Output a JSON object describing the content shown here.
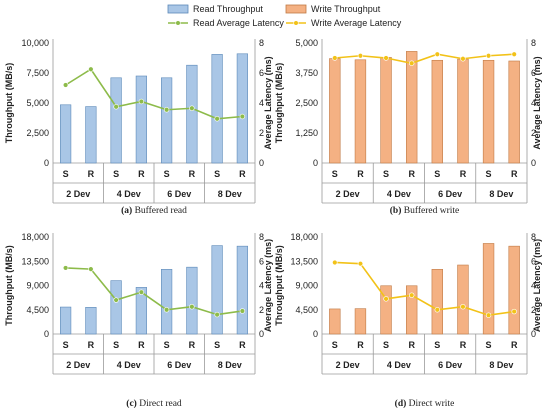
{
  "legend": {
    "read_throughput": "Read Throughput",
    "write_throughput": "Write Throughput",
    "read_latency": "Read Average Latency",
    "write_latency": "Write Average Latency"
  },
  "colors": {
    "read_bar": "#a9c6e6",
    "read_bar_edge": "#5b88b8",
    "write_bar": "#f4b183",
    "write_bar_edge": "#c07a45",
    "read_line": "#8dbb4a",
    "write_line": "#f2c218",
    "axis": "#9a9a9a"
  },
  "chart_data": [
    {
      "type": "bar",
      "panel": "a",
      "caption_letter": "(a)",
      "caption_text": "Buffered read",
      "ylabel": "Throughput (MB/s)",
      "y2label": "Average Latency (ms)",
      "ylim": [
        0,
        10000
      ],
      "y_ticks": [
        "0",
        "2,500",
        "5,000",
        "7,500",
        "10,000"
      ],
      "y2lim": [
        0,
        8
      ],
      "y2_ticks": [
        "0",
        "2",
        "4",
        "6",
        "8"
      ],
      "categories": [
        "S",
        "R",
        "S",
        "R",
        "S",
        "R",
        "S",
        "R"
      ],
      "groups": [
        "2 Dev",
        "4 Dev",
        "6 Dev",
        "8 Dev"
      ],
      "series": [
        {
          "name": "Read Throughput",
          "kind": "bar",
          "values": [
            4850,
            4700,
            7100,
            7250,
            7100,
            8150,
            9050,
            9100
          ]
        },
        {
          "name": "Read Average Latency",
          "kind": "line",
          "axis": "right",
          "values": [
            5.2,
            6.25,
            3.75,
            4.1,
            3.55,
            3.65,
            2.95,
            3.1
          ]
        }
      ]
    },
    {
      "type": "bar",
      "panel": "b",
      "caption_letter": "(b)",
      "caption_text": "Buffered write",
      "ylabel": "Throughput (MB/s)",
      "y2label": "Average Latency (ms)",
      "ylim": [
        0,
        5000
      ],
      "y_ticks": [
        "0",
        "1,250",
        "2,500",
        "3,750",
        "5,000"
      ],
      "y2lim": [
        0,
        8
      ],
      "y2_ticks": [
        "0",
        "2",
        "4",
        "6",
        "8"
      ],
      "categories": [
        "S",
        "R",
        "S",
        "R",
        "S",
        "R",
        "S",
        "R"
      ],
      "groups": [
        "2 Dev",
        "4 Dev",
        "6 Dev",
        "8 Dev"
      ],
      "series": [
        {
          "name": "Write Throughput",
          "kind": "bar",
          "values": [
            4350,
            4300,
            4400,
            4650,
            4280,
            4330,
            4280,
            4250
          ]
        },
        {
          "name": "Write Average Latency",
          "kind": "line",
          "axis": "right",
          "values": [
            7.0,
            7.15,
            7.0,
            6.65,
            7.25,
            6.95,
            7.15,
            7.25
          ]
        }
      ]
    },
    {
      "type": "bar",
      "panel": "c",
      "caption_letter": "(c)",
      "caption_text": "Direct read",
      "ylabel": "Throughput (MB/s)",
      "y2label": "Average Latency (ms)",
      "ylim": [
        0,
        18000
      ],
      "y_ticks": [
        "0",
        "4,500",
        "9,000",
        "13,500",
        "18,000"
      ],
      "y2lim": [
        0,
        8
      ],
      "y2_ticks": [
        "0",
        "2",
        "4",
        "6",
        "8"
      ],
      "categories": [
        "S",
        "R",
        "S",
        "R",
        "S",
        "R",
        "S",
        "R"
      ],
      "groups": [
        "2 Dev",
        "4 Dev",
        "6 Dev",
        "8 Dev"
      ],
      "series": [
        {
          "name": "Read Throughput",
          "kind": "bar",
          "values": [
            5000,
            4950,
            9900,
            8650,
            12000,
            12400,
            16400,
            16300
          ]
        },
        {
          "name": "Read Average Latency",
          "kind": "line",
          "axis": "right",
          "values": [
            5.45,
            5.35,
            2.8,
            3.45,
            2.0,
            2.25,
            1.6,
            1.9
          ]
        }
      ]
    },
    {
      "type": "bar",
      "panel": "d",
      "caption_letter": "(d)",
      "caption_text": "Direct write",
      "ylabel": "Throughput (MB/s)",
      "y2label": "Average Latency (ms)",
      "ylim": [
        0,
        18000
      ],
      "y_ticks": [
        "0",
        "4,500",
        "9,000",
        "13,500",
        "18,000"
      ],
      "y2lim": [
        0,
        8
      ],
      "y2_ticks": [
        "0",
        "2",
        "4",
        "6",
        "8"
      ],
      "categories": [
        "S",
        "R",
        "S",
        "R",
        "S",
        "R",
        "S",
        "R"
      ],
      "groups": [
        "2 Dev",
        "4 Dev",
        "6 Dev",
        "8 Dev"
      ],
      "series": [
        {
          "name": "Write Throughput",
          "kind": "bar",
          "values": [
            4650,
            4700,
            8950,
            8950,
            12000,
            12800,
            16800,
            16300
          ]
        },
        {
          "name": "Write Average Latency",
          "kind": "line",
          "axis": "right",
          "values": [
            5.9,
            5.8,
            2.9,
            3.2,
            2.0,
            2.25,
            1.55,
            1.85
          ]
        }
      ]
    }
  ]
}
